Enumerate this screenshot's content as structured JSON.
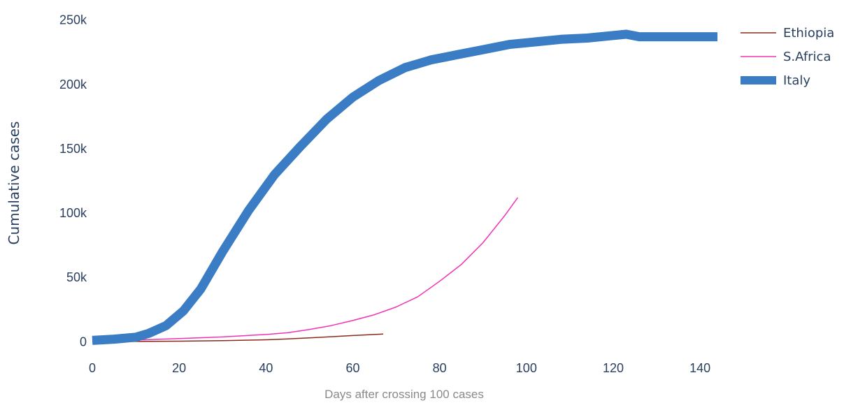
{
  "chart_data": {
    "type": "line",
    "title": "",
    "xlabel": "Days after crossing 100 cases",
    "ylabel": "Cumulative cases",
    "xlim": [
      0,
      144
    ],
    "ylim": [
      -8000,
      252000
    ],
    "x_ticks": [
      0,
      20,
      40,
      60,
      80,
      100,
      120,
      140
    ],
    "y_ticks": [
      0,
      50000,
      100000,
      150000,
      200000,
      250000
    ],
    "y_tick_labels": [
      "0",
      "50k",
      "100k",
      "150k",
      "200k",
      "250k"
    ],
    "grid": false,
    "legend_position": "top-right",
    "series": [
      {
        "name": "Ethiopia",
        "color": "#8b2a1c",
        "line_width": 1.5,
        "x": [
          0,
          10,
          20,
          30,
          40,
          45,
          50,
          55,
          60,
          67
        ],
        "y": [
          100,
          200,
          400,
          800,
          1500,
          2200,
          3000,
          3900,
          4800,
          6000
        ]
      },
      {
        "name": "S.Africa",
        "color": "#f032b4",
        "line_width": 1.5,
        "x": [
          0,
          10,
          20,
          30,
          40,
          45,
          50,
          55,
          60,
          65,
          70,
          75,
          80,
          85,
          90,
          95,
          98
        ],
        "y": [
          100,
          1300,
          2500,
          3700,
          5600,
          7000,
          9500,
          12500,
          16500,
          21000,
          27000,
          35000,
          47000,
          60000,
          77000,
          98000,
          112000
        ]
      },
      {
        "name": "Italy",
        "color": "#3a7dc4",
        "line_width": 13,
        "x": [
          0,
          5,
          10,
          13,
          17,
          21,
          25,
          30,
          36,
          42,
          48,
          54,
          60,
          66,
          72,
          78,
          84,
          90,
          96,
          102,
          108,
          114,
          120,
          123,
          126,
          132,
          138,
          144
        ],
        "y": [
          1000,
          2000,
          3500,
          6500,
          12500,
          24000,
          41000,
          70000,
          102000,
          130000,
          152000,
          173000,
          190000,
          203000,
          213000,
          219000,
          223000,
          227000,
          231000,
          233000,
          235000,
          236000,
          238000,
          239000,
          237000,
          237000,
          237000,
          237000
        ]
      }
    ]
  }
}
